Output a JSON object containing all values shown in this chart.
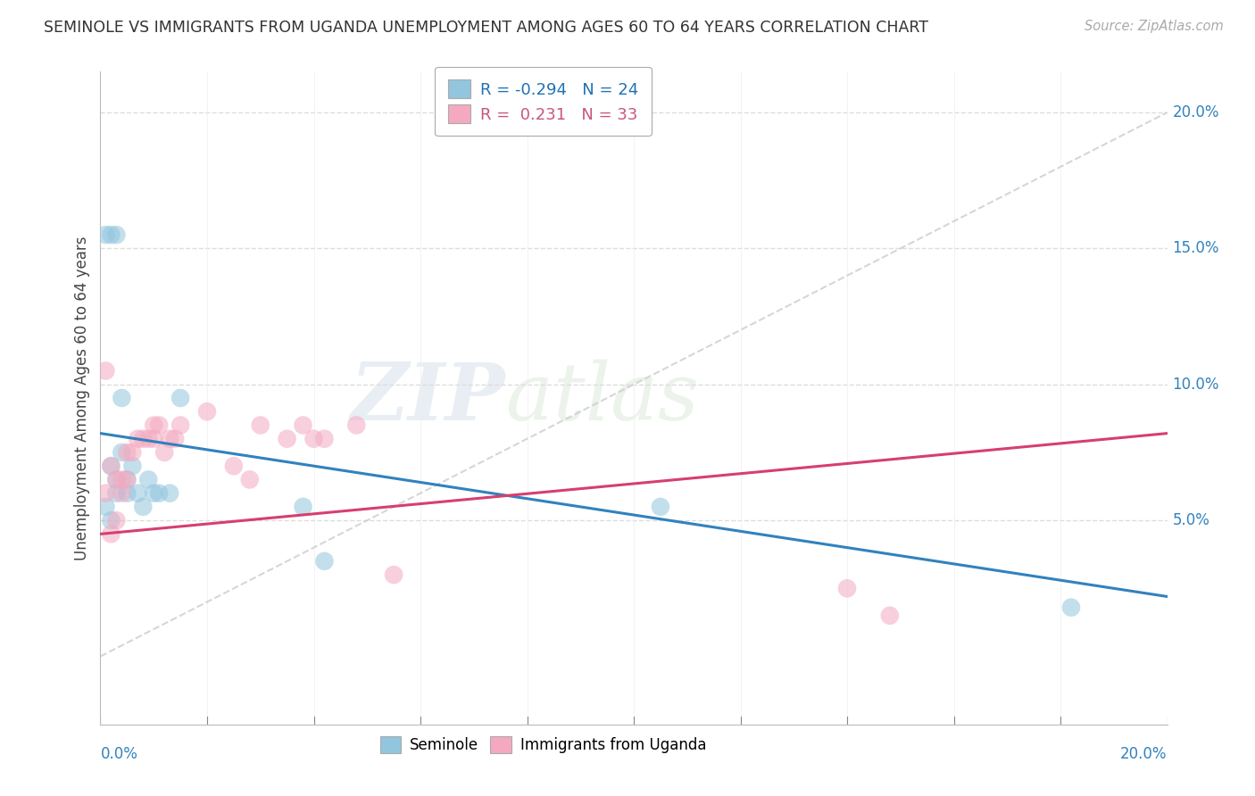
{
  "title": "SEMINOLE VS IMMIGRANTS FROM UGANDA UNEMPLOYMENT AMONG AGES 60 TO 64 YEARS CORRELATION CHART",
  "source": "Source: ZipAtlas.com",
  "ylabel": "Unemployment Among Ages 60 to 64 years",
  "legend1_r": "-0.294",
  "legend1_n": "24",
  "legend2_r": "0.231",
  "legend2_n": "33",
  "blue_color": "#92c5de",
  "pink_color": "#f4a9c0",
  "blue_line_color": "#3182bd",
  "pink_line_color": "#d63f6e",
  "grey_line_color": "#cccccc",
  "watermark_zip": "ZIP",
  "watermark_atlas": "atlas",
  "seminole_x": [
    0.001,
    0.002,
    0.003,
    0.001,
    0.002,
    0.003,
    0.004,
    0.002,
    0.003,
    0.004,
    0.005,
    0.005,
    0.006,
    0.007,
    0.008,
    0.009,
    0.01,
    0.011,
    0.013,
    0.015,
    0.038,
    0.042,
    0.105,
    0.182
  ],
  "seminole_y": [
    0.155,
    0.155,
    0.155,
    0.055,
    0.05,
    0.06,
    0.095,
    0.07,
    0.065,
    0.075,
    0.06,
    0.065,
    0.07,
    0.06,
    0.055,
    0.065,
    0.06,
    0.06,
    0.06,
    0.095,
    0.055,
    0.035,
    0.055,
    0.018
  ],
  "uganda_x": [
    0.001,
    0.001,
    0.002,
    0.002,
    0.003,
    0.003,
    0.004,
    0.004,
    0.005,
    0.005,
    0.006,
    0.007,
    0.008,
    0.009,
    0.01,
    0.01,
    0.011,
    0.012,
    0.013,
    0.014,
    0.015,
    0.02,
    0.025,
    0.028,
    0.03,
    0.035,
    0.038,
    0.04,
    0.042,
    0.048,
    0.055,
    0.14,
    0.148
  ],
  "uganda_y": [
    0.105,
    0.06,
    0.07,
    0.045,
    0.065,
    0.05,
    0.065,
    0.06,
    0.075,
    0.065,
    0.075,
    0.08,
    0.08,
    0.08,
    0.085,
    0.08,
    0.085,
    0.075,
    0.08,
    0.08,
    0.085,
    0.09,
    0.07,
    0.065,
    0.085,
    0.08,
    0.085,
    0.08,
    0.08,
    0.085,
    0.03,
    0.025,
    0.015
  ],
  "xlim": [
    0.0,
    0.2
  ],
  "ylim": [
    -0.025,
    0.215
  ],
  "xticks_vals": [
    0.0,
    0.02,
    0.04,
    0.06,
    0.08,
    0.1,
    0.12,
    0.14,
    0.16,
    0.18,
    0.2
  ],
  "yticks_vals": [
    0.05,
    0.1,
    0.15,
    0.2
  ],
  "ytick_labels": [
    "5.0%",
    "10.0%",
    "15.0%",
    "20.0%"
  ],
  "background_color": "#ffffff"
}
